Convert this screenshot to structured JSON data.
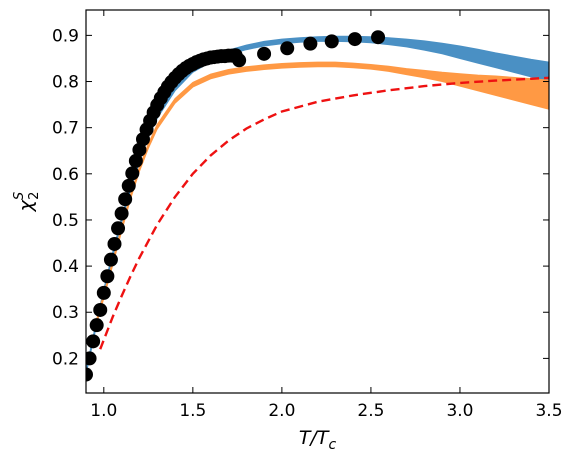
{
  "chart_data": {
    "type": "line",
    "xlabel_base": "T/T",
    "xlabel_sub": "c",
    "ylabel_base": "χ",
    "ylabel_sup": "S",
    "ylabel_sub": "2",
    "xlim": [
      0.9,
      3.5
    ],
    "ylim": [
      0.125,
      0.955
    ],
    "xticks": [
      1.0,
      1.5,
      2.0,
      2.5,
      3.0,
      3.5
    ],
    "xtick_labels": [
      "1.0",
      "1.5",
      "2.0",
      "2.5",
      "3.0",
      "3.5"
    ],
    "yticks": [
      0.2,
      0.3,
      0.4,
      0.5,
      0.6,
      0.7,
      0.8,
      0.9
    ],
    "ytick_labels": [
      "0.2",
      "0.3",
      "0.4",
      "0.5",
      "0.6",
      "0.7",
      "0.8",
      "0.9"
    ],
    "grid": false,
    "legend": "none",
    "series": [
      {
        "kind": "band",
        "color": "#4a90c4",
        "x": [
          0.9,
          0.95,
          1.0,
          1.05,
          1.1,
          1.15,
          1.2,
          1.25,
          1.3,
          1.4,
          1.5,
          1.6,
          1.7,
          1.8,
          1.9,
          2.0,
          2.1,
          2.2,
          2.3,
          2.4,
          2.5,
          2.6,
          2.7,
          2.8,
          2.9,
          3.0,
          3.1,
          3.2,
          3.3,
          3.4,
          3.5
        ],
        "upper": [
          0.175,
          0.265,
          0.35,
          0.43,
          0.505,
          0.575,
          0.635,
          0.69,
          0.73,
          0.79,
          0.83,
          0.852,
          0.868,
          0.879,
          0.887,
          0.892,
          0.895,
          0.897,
          0.898,
          0.898,
          0.897,
          0.895,
          0.892,
          0.888,
          0.883,
          0.877,
          0.87,
          0.862,
          0.855,
          0.848,
          0.842
        ],
        "lower": [
          0.165,
          0.255,
          0.34,
          0.42,
          0.495,
          0.565,
          0.625,
          0.68,
          0.72,
          0.78,
          0.82,
          0.842,
          0.858,
          0.869,
          0.877,
          0.882,
          0.885,
          0.887,
          0.887,
          0.886,
          0.884,
          0.88,
          0.875,
          0.868,
          0.86,
          0.85,
          0.84,
          0.83,
          0.82,
          0.81,
          0.8
        ]
      },
      {
        "kind": "band",
        "color": "#ff9944",
        "x": [
          0.95,
          1.0,
          1.05,
          1.1,
          1.15,
          1.2,
          1.25,
          1.3,
          1.4,
          1.5,
          1.6,
          1.7,
          1.8,
          1.9,
          2.0,
          2.1,
          2.2,
          2.3,
          2.4,
          2.5,
          2.6,
          2.7,
          2.8,
          2.9,
          3.0,
          3.1,
          3.2,
          3.3,
          3.4,
          3.5
        ],
        "upper": [
          0.272,
          0.34,
          0.412,
          0.485,
          0.555,
          0.615,
          0.665,
          0.707,
          0.763,
          0.798,
          0.816,
          0.826,
          0.832,
          0.836,
          0.839,
          0.841,
          0.842,
          0.842,
          0.84,
          0.837,
          0.833,
          0.828,
          0.824,
          0.82,
          0.817,
          0.814,
          0.812,
          0.809,
          0.806,
          0.803
        ],
        "lower": [
          0.262,
          0.33,
          0.402,
          0.475,
          0.545,
          0.605,
          0.655,
          0.697,
          0.753,
          0.788,
          0.806,
          0.816,
          0.822,
          0.826,
          0.829,
          0.831,
          0.832,
          0.832,
          0.83,
          0.827,
          0.822,
          0.815,
          0.808,
          0.8,
          0.79,
          0.78,
          0.77,
          0.76,
          0.75,
          0.74
        ]
      },
      {
        "kind": "dashed",
        "color": "#ee1111",
        "x": [
          0.98,
          1.0,
          1.05,
          1.1,
          1.15,
          1.2,
          1.3,
          1.4,
          1.5,
          1.6,
          1.7,
          1.8,
          1.9,
          2.0,
          2.2,
          2.4,
          2.6,
          2.8,
          3.0,
          3.2,
          3.4,
          3.5
        ],
        "y": [
          0.22,
          0.24,
          0.29,
          0.335,
          0.378,
          0.418,
          0.49,
          0.55,
          0.6,
          0.64,
          0.672,
          0.698,
          0.718,
          0.735,
          0.756,
          0.77,
          0.781,
          0.79,
          0.797,
          0.802,
          0.806,
          0.808
        ]
      },
      {
        "kind": "dense-markers",
        "color": "#000000",
        "x": [
          0.9,
          0.92,
          0.94,
          0.96,
          0.98,
          1.0,
          1.02,
          1.04,
          1.06,
          1.08,
          1.1,
          1.12,
          1.14,
          1.16,
          1.18,
          1.2,
          1.22,
          1.24,
          1.26,
          1.28,
          1.3,
          1.32,
          1.34,
          1.36,
          1.38,
          1.4,
          1.42,
          1.44,
          1.46,
          1.48,
          1.5,
          1.52,
          1.54,
          1.56,
          1.58,
          1.6,
          1.62,
          1.64,
          1.66,
          1.68,
          1.7,
          1.72,
          1.74
        ],
        "y": [
          0.165,
          0.2,
          0.237,
          0.272,
          0.305,
          0.342,
          0.378,
          0.414,
          0.448,
          0.482,
          0.514,
          0.545,
          0.574,
          0.601,
          0.628,
          0.652,
          0.675,
          0.696,
          0.715,
          0.733,
          0.749,
          0.764,
          0.777,
          0.789,
          0.799,
          0.808,
          0.816,
          0.823,
          0.829,
          0.834,
          0.838,
          0.842,
          0.845,
          0.848,
          0.85,
          0.852,
          0.853,
          0.854,
          0.855,
          0.855,
          0.856,
          0.856,
          0.857
        ]
      },
      {
        "kind": "points-with-error",
        "color": "#000000",
        "x": [
          1.76,
          1.9,
          2.03,
          2.16,
          2.28,
          2.41,
          2.54
        ],
        "y": [
          0.846,
          0.86,
          0.872,
          0.882,
          0.887,
          0.892,
          0.896
        ],
        "err": [
          0.006,
          0.007,
          0.008,
          0.009,
          0.01,
          0.012,
          0.014
        ]
      }
    ]
  }
}
